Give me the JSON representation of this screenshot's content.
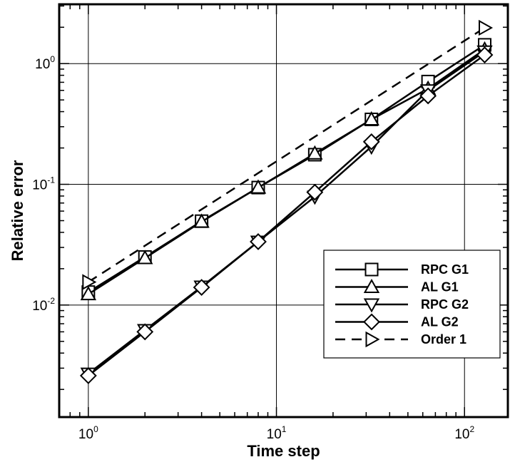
{
  "chart_data": {
    "type": "line",
    "xlabel": "Time step",
    "ylabel": "Relative error",
    "xscale": "log",
    "yscale": "log",
    "xlim": [
      0.7,
      170
    ],
    "ylim": [
      0.00118,
      3.1
    ],
    "grid": true,
    "legend_position": "lower-right",
    "x_ticks": [
      {
        "value": 1,
        "base": "10",
        "exp": "0"
      },
      {
        "value": 10,
        "base": "10",
        "exp": "1"
      },
      {
        "value": 100,
        "base": "10",
        "exp": "2"
      }
    ],
    "y_ticks": [
      {
        "value": 0.01,
        "base": "10",
        "exp": "-2"
      },
      {
        "value": 0.1,
        "base": "10",
        "exp": "-1"
      },
      {
        "value": 1,
        "base": "10",
        "exp": "0"
      }
    ],
    "series": [
      {
        "name": "RPC G1",
        "marker": "square",
        "dash": false,
        "x": [
          1,
          2,
          4,
          8,
          16,
          32,
          64,
          128
        ],
        "y": [
          0.0128,
          0.025,
          0.0495,
          0.094,
          0.176,
          0.345,
          0.71,
          1.43
        ]
      },
      {
        "name": "AL G1",
        "marker": "triangle-up",
        "dash": false,
        "x": [
          1,
          2,
          4,
          8,
          16,
          32,
          64,
          128
        ],
        "y": [
          0.0123,
          0.0245,
          0.049,
          0.094,
          0.18,
          0.345,
          0.62,
          1.31
        ]
      },
      {
        "name": "RPC G2",
        "marker": "triangle-down",
        "dash": false,
        "x": [
          1,
          2,
          4,
          8,
          16,
          32,
          64,
          128
        ],
        "y": [
          0.0027,
          0.0062,
          0.0142,
          0.0335,
          0.079,
          0.205,
          0.6,
          1.26
        ]
      },
      {
        "name": "AL G2",
        "marker": "diamond",
        "dash": false,
        "x": [
          1,
          2,
          4,
          8,
          16,
          32,
          64,
          128
        ],
        "y": [
          0.0026,
          0.006,
          0.014,
          0.0335,
          0.086,
          0.225,
          0.54,
          1.18
        ]
      },
      {
        "name": "Order 1",
        "marker": "triangle-right",
        "dash": true,
        "x": [
          1,
          128
        ],
        "y": [
          0.0155,
          1.98
        ]
      }
    ]
  }
}
